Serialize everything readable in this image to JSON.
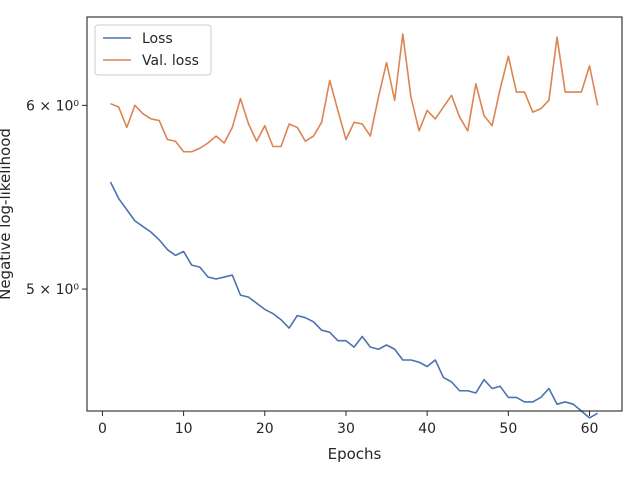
{
  "chart_data": {
    "type": "line",
    "title": "",
    "xlabel": "Epochs",
    "ylabel": "Negative log-likelihood",
    "yscale": "log",
    "xlim": [
      -1.9,
      64.0
    ],
    "ylim": [
      4.43,
      6.55
    ],
    "x_ticks": [
      0,
      10,
      20,
      30,
      40,
      50,
      60
    ],
    "x_tick_labels": [
      "0",
      "10",
      "20",
      "30",
      "40",
      "50",
      "60"
    ],
    "y_ticks": [
      5,
      6
    ],
    "y_tick_labels": [
      "5 × 10⁰",
      "6 × 10⁰"
    ],
    "grid": false,
    "legend_position": "top-left",
    "x": [
      1,
      2,
      3,
      4,
      5,
      6,
      7,
      8,
      9,
      10,
      11,
      12,
      13,
      14,
      15,
      16,
      17,
      18,
      19,
      20,
      21,
      22,
      23,
      24,
      25,
      26,
      27,
      28,
      29,
      30,
      31,
      32,
      33,
      34,
      35,
      36,
      37,
      38,
      39,
      40,
      41,
      42,
      43,
      44,
      45,
      46,
      47,
      48,
      49,
      50,
      51,
      52,
      53,
      54,
      55,
      56,
      57,
      58,
      59,
      60,
      61
    ],
    "series": [
      {
        "name": "Loss",
        "color": "#4c72b0",
        "values": [
          5.56,
          5.47,
          5.41,
          5.35,
          5.32,
          5.29,
          5.25,
          5.2,
          5.17,
          5.19,
          5.12,
          5.11,
          5.06,
          5.05,
          5.06,
          5.07,
          4.97,
          4.96,
          4.93,
          4.9,
          4.88,
          4.85,
          4.81,
          4.87,
          4.86,
          4.84,
          4.8,
          4.79,
          4.75,
          4.75,
          4.72,
          4.77,
          4.72,
          4.71,
          4.73,
          4.71,
          4.66,
          4.66,
          4.65,
          4.63,
          4.66,
          4.58,
          4.56,
          4.52,
          4.52,
          4.51,
          4.57,
          4.53,
          4.54,
          4.49,
          4.49,
          4.47,
          4.47,
          4.49,
          4.53,
          4.46,
          4.47,
          4.46,
          4.43,
          4.4,
          4.42
        ]
      },
      {
        "name": "Val. loss",
        "color": "#dd8452",
        "values": [
          6.01,
          5.99,
          5.87,
          6.0,
          5.95,
          5.92,
          5.91,
          5.8,
          5.79,
          5.73,
          5.73,
          5.75,
          5.78,
          5.82,
          5.78,
          5.87,
          6.04,
          5.89,
          5.79,
          5.88,
          5.76,
          5.76,
          5.89,
          5.87,
          5.79,
          5.82,
          5.9,
          6.15,
          5.97,
          5.8,
          5.9,
          5.89,
          5.82,
          6.05,
          6.26,
          6.03,
          6.44,
          6.05,
          5.85,
          5.97,
          5.92,
          5.99,
          6.06,
          5.93,
          5.85,
          6.13,
          5.94,
          5.88,
          6.1,
          6.3,
          6.08,
          6.08,
          5.96,
          5.98,
          6.03,
          6.42,
          6.08,
          6.08,
          6.08,
          6.24,
          6.0
        ]
      }
    ]
  }
}
